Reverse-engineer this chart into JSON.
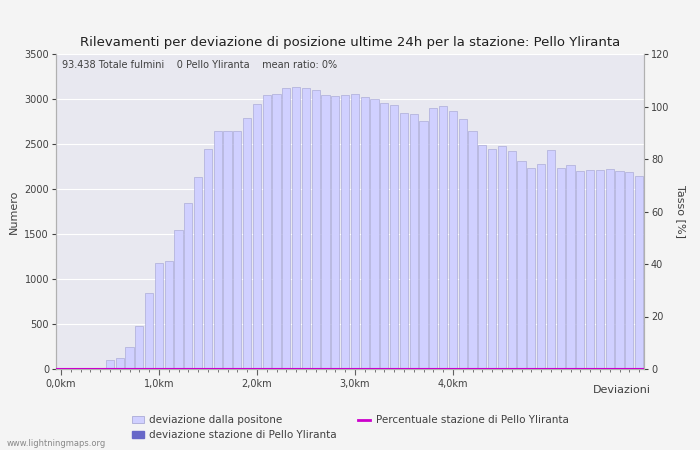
{
  "title": "Rilevamenti per deviazione di posizione ultime 24h per la stazione: Pello Yliranta",
  "subtitle": "93.438 Totale fulmini    0 Pello Yliranta    mean ratio: 0%",
  "xlabel": "Deviazioni",
  "ylabel_left": "Numero",
  "ylabel_right": "Tasso [%]",
  "watermark": "www.lightningmaps.org",
  "ylim_left": [
    0,
    3500
  ],
  "ylim_right": [
    0,
    120
  ],
  "yticks_left": [
    0,
    500,
    1000,
    1500,
    2000,
    2500,
    3000,
    3500
  ],
  "yticks_right": [
    0,
    20,
    40,
    60,
    80,
    100,
    120
  ],
  "xtick_labels": [
    "0,0km",
    "1,0km",
    "2,0km",
    "3,0km",
    "4,0km"
  ],
  "xtick_positions": [
    0,
    10,
    20,
    30,
    40
  ],
  "bar_color_light": "#d0d0ff",
  "bar_color_dark": "#6868c8",
  "bar_edge_color": "#a0a0d0",
  "line_color": "#cc00cc",
  "background_color": "#f4f4f4",
  "plot_bg_color": "#e8e8f0",
  "grid_color": "#ffffff",
  "total_values": [
    0,
    0,
    0,
    0,
    0,
    95,
    120,
    240,
    480,
    850,
    1180,
    1200,
    1550,
    1850,
    2130,
    2450,
    2640,
    2640,
    2650,
    2790,
    2950,
    3040,
    3060,
    3120,
    3130,
    3120,
    3100,
    3050,
    3030,
    3040,
    3060,
    3020,
    3000,
    2960,
    2930,
    2840,
    2830,
    2760,
    2900,
    2920,
    2870,
    2780,
    2650,
    2490,
    2440,
    2480,
    2420,
    2310,
    2230,
    2280,
    2430,
    2230,
    2270,
    2200,
    2210,
    2210,
    2220,
    2200,
    2190,
    2140
  ],
  "station_values": [
    0,
    0,
    0,
    0,
    0,
    0,
    0,
    0,
    0,
    0,
    0,
    0,
    0,
    0,
    0,
    0,
    0,
    0,
    0,
    0,
    0,
    0,
    0,
    0,
    0,
    0,
    0,
    0,
    0,
    0,
    0,
    0,
    0,
    0,
    0,
    0,
    0,
    0,
    0,
    0,
    0,
    0,
    0,
    0,
    0,
    0,
    0,
    0,
    0,
    0,
    0,
    0,
    0,
    0,
    0,
    0,
    0,
    0,
    0,
    0
  ],
  "mean_ratio": 0,
  "legend_label1": "deviazione dalla positone",
  "legend_label2": "deviazione stazione di Pello Yliranta",
  "legend_label3": "Percentuale stazione di Pello Yliranta",
  "bar_width": 0.85,
  "n_bars": 60
}
